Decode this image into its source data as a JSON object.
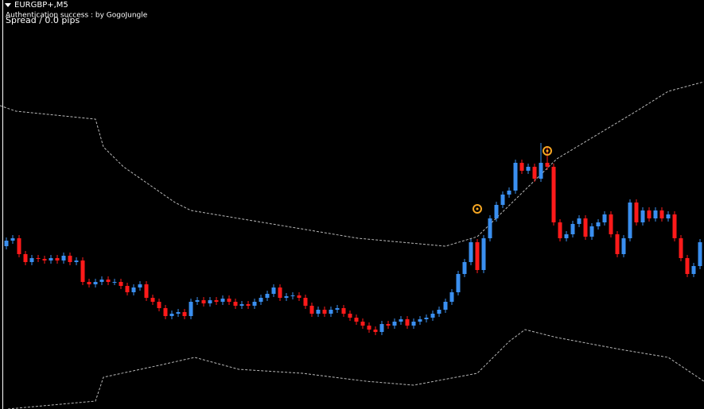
{
  "chart_data": {
    "type": "candlestick",
    "symbol": "EURGBP+,M5",
    "status": "Authentication success : by GogoJungle",
    "spread": "Spread / 0.0 pips",
    "open": [
      205,
      212,
      215,
      195,
      185,
      190,
      189,
      187,
      190,
      187,
      193,
      185,
      187,
      160,
      157,
      160,
      163,
      160,
      160,
      155,
      147,
      153,
      157,
      140,
      135,
      127,
      117,
      120,
      122,
      117,
      135,
      137,
      133,
      137,
      135,
      139,
      135,
      130,
      132,
      130,
      135,
      140,
      145,
      153,
      140,
      142,
      143,
      140,
      130,
      120,
      125,
      120,
      125,
      127,
      120,
      115,
      110,
      105,
      100,
      97,
      107,
      105,
      110,
      113,
      105,
      110,
      113,
      115,
      120,
      125,
      135,
      147,
      170,
      185,
      210,
      175,
      215,
      240,
      257,
      270,
      275,
      310,
      300,
      305,
      290,
      310,
      305,
      235,
      215,
      220,
      233,
      240,
      217,
      230,
      235,
      245,
      220,
      195,
      215,
      260,
      235,
      250,
      240,
      250,
      240,
      245,
      215,
      190,
      170,
      180
    ],
    "high": [
      216,
      219,
      219,
      199,
      194,
      194,
      193,
      194,
      194,
      197,
      197,
      191,
      191,
      164,
      164,
      167,
      167,
      164,
      164,
      159,
      157,
      161,
      161,
      144,
      139,
      131,
      124,
      126,
      126,
      139,
      141,
      141,
      141,
      141,
      143,
      143,
      139,
      136,
      136,
      139,
      144,
      149,
      157,
      157,
      146,
      147,
      147,
      144,
      134,
      129,
      129,
      129,
      131,
      131,
      124,
      119,
      114,
      109,
      104,
      111,
      111,
      114,
      117,
      117,
      114,
      117,
      119,
      124,
      129,
      139,
      151,
      174,
      189,
      214,
      214,
      219,
      244,
      261,
      274,
      279,
      314,
      314,
      309,
      309,
      335,
      330,
      309,
      239,
      224,
      237,
      244,
      244,
      234,
      239,
      249,
      249,
      224,
      219,
      264,
      264,
      254,
      254,
      254,
      254,
      249,
      249,
      219,
      194,
      184,
      214
    ],
    "low": [
      201,
      208,
      191,
      181,
      181,
      185,
      183,
      183,
      183,
      183,
      181,
      181,
      156,
      153,
      153,
      156,
      156,
      156,
      151,
      143,
      143,
      149,
      136,
      131,
      123,
      113,
      113,
      116,
      113,
      113,
      131,
      129,
      129,
      131,
      131,
      131,
      126,
      126,
      126,
      126,
      131,
      136,
      141,
      136,
      136,
      138,
      136,
      126,
      116,
      116,
      116,
      116,
      121,
      116,
      111,
      106,
      101,
      96,
      93,
      93,
      101,
      101,
      106,
      101,
      101,
      106,
      109,
      111,
      116,
      121,
      131,
      143,
      166,
      181,
      171,
      171,
      211,
      236,
      253,
      266,
      271,
      296,
      296,
      286,
      286,
      301,
      231,
      211,
      211,
      216,
      229,
      213,
      213,
      226,
      231,
      216,
      191,
      191,
      211,
      231,
      231,
      236,
      236,
      236,
      236,
      211,
      186,
      166,
      166,
      176
    ],
    "close": [
      212,
      215,
      195,
      185,
      190,
      189,
      187,
      190,
      187,
      193,
      185,
      187,
      160,
      157,
      160,
      163,
      160,
      160,
      155,
      147,
      153,
      157,
      140,
      135,
      127,
      117,
      120,
      122,
      117,
      135,
      137,
      133,
      137,
      135,
      139,
      135,
      130,
      132,
      130,
      135,
      140,
      145,
      153,
      140,
      142,
      143,
      140,
      130,
      120,
      125,
      120,
      125,
      127,
      120,
      115,
      110,
      105,
      100,
      97,
      107,
      105,
      110,
      113,
      105,
      110,
      113,
      115,
      120,
      125,
      135,
      147,
      170,
      185,
      210,
      175,
      215,
      240,
      257,
      270,
      275,
      310,
      300,
      305,
      290,
      310,
      305,
      235,
      215,
      220,
      233,
      240,
      217,
      230,
      235,
      245,
      220,
      195,
      215,
      260,
      235,
      250,
      240,
      250,
      240,
      245,
      215,
      190,
      170,
      180,
      210
    ],
    "up_color": "#3a8ff0",
    "down_color": "#ff1a1a",
    "bands": [
      {
        "color": "#b8b8b8",
        "x": [
          -1,
          1.5,
          14,
          15.25,
          18.4,
          26.5,
          29,
          36.5,
          55.25,
          69,
          74,
          86.5,
          99,
          104,
          109.6
        ],
        "values": [
          382,
          375,
          365,
          330,
          305,
          260,
          250,
          240,
          215,
          205,
          217,
          315,
          375,
          400,
          412
        ]
      },
      {
        "color": "#b8b8b8",
        "x": [
          0.25,
          14,
          15.25,
          24,
          29.6,
          36.5,
          46.5,
          56.5,
          64,
          74,
          79,
          81.5,
          86.5,
          96.5,
          104,
          109.6
        ],
        "values": [
          0,
          10,
          40,
          55,
          65,
          50,
          45,
          35,
          30,
          45,
          85,
          100,
          90,
          75,
          65,
          35
        ]
      }
    ],
    "signals": {
      "color": "#f5a623",
      "x": [
        74,
        85
      ],
      "values": [
        252,
        325
      ]
    },
    "xlim": [
      -1,
      109.625
    ],
    "ylim": [
      0,
      515
    ]
  }
}
